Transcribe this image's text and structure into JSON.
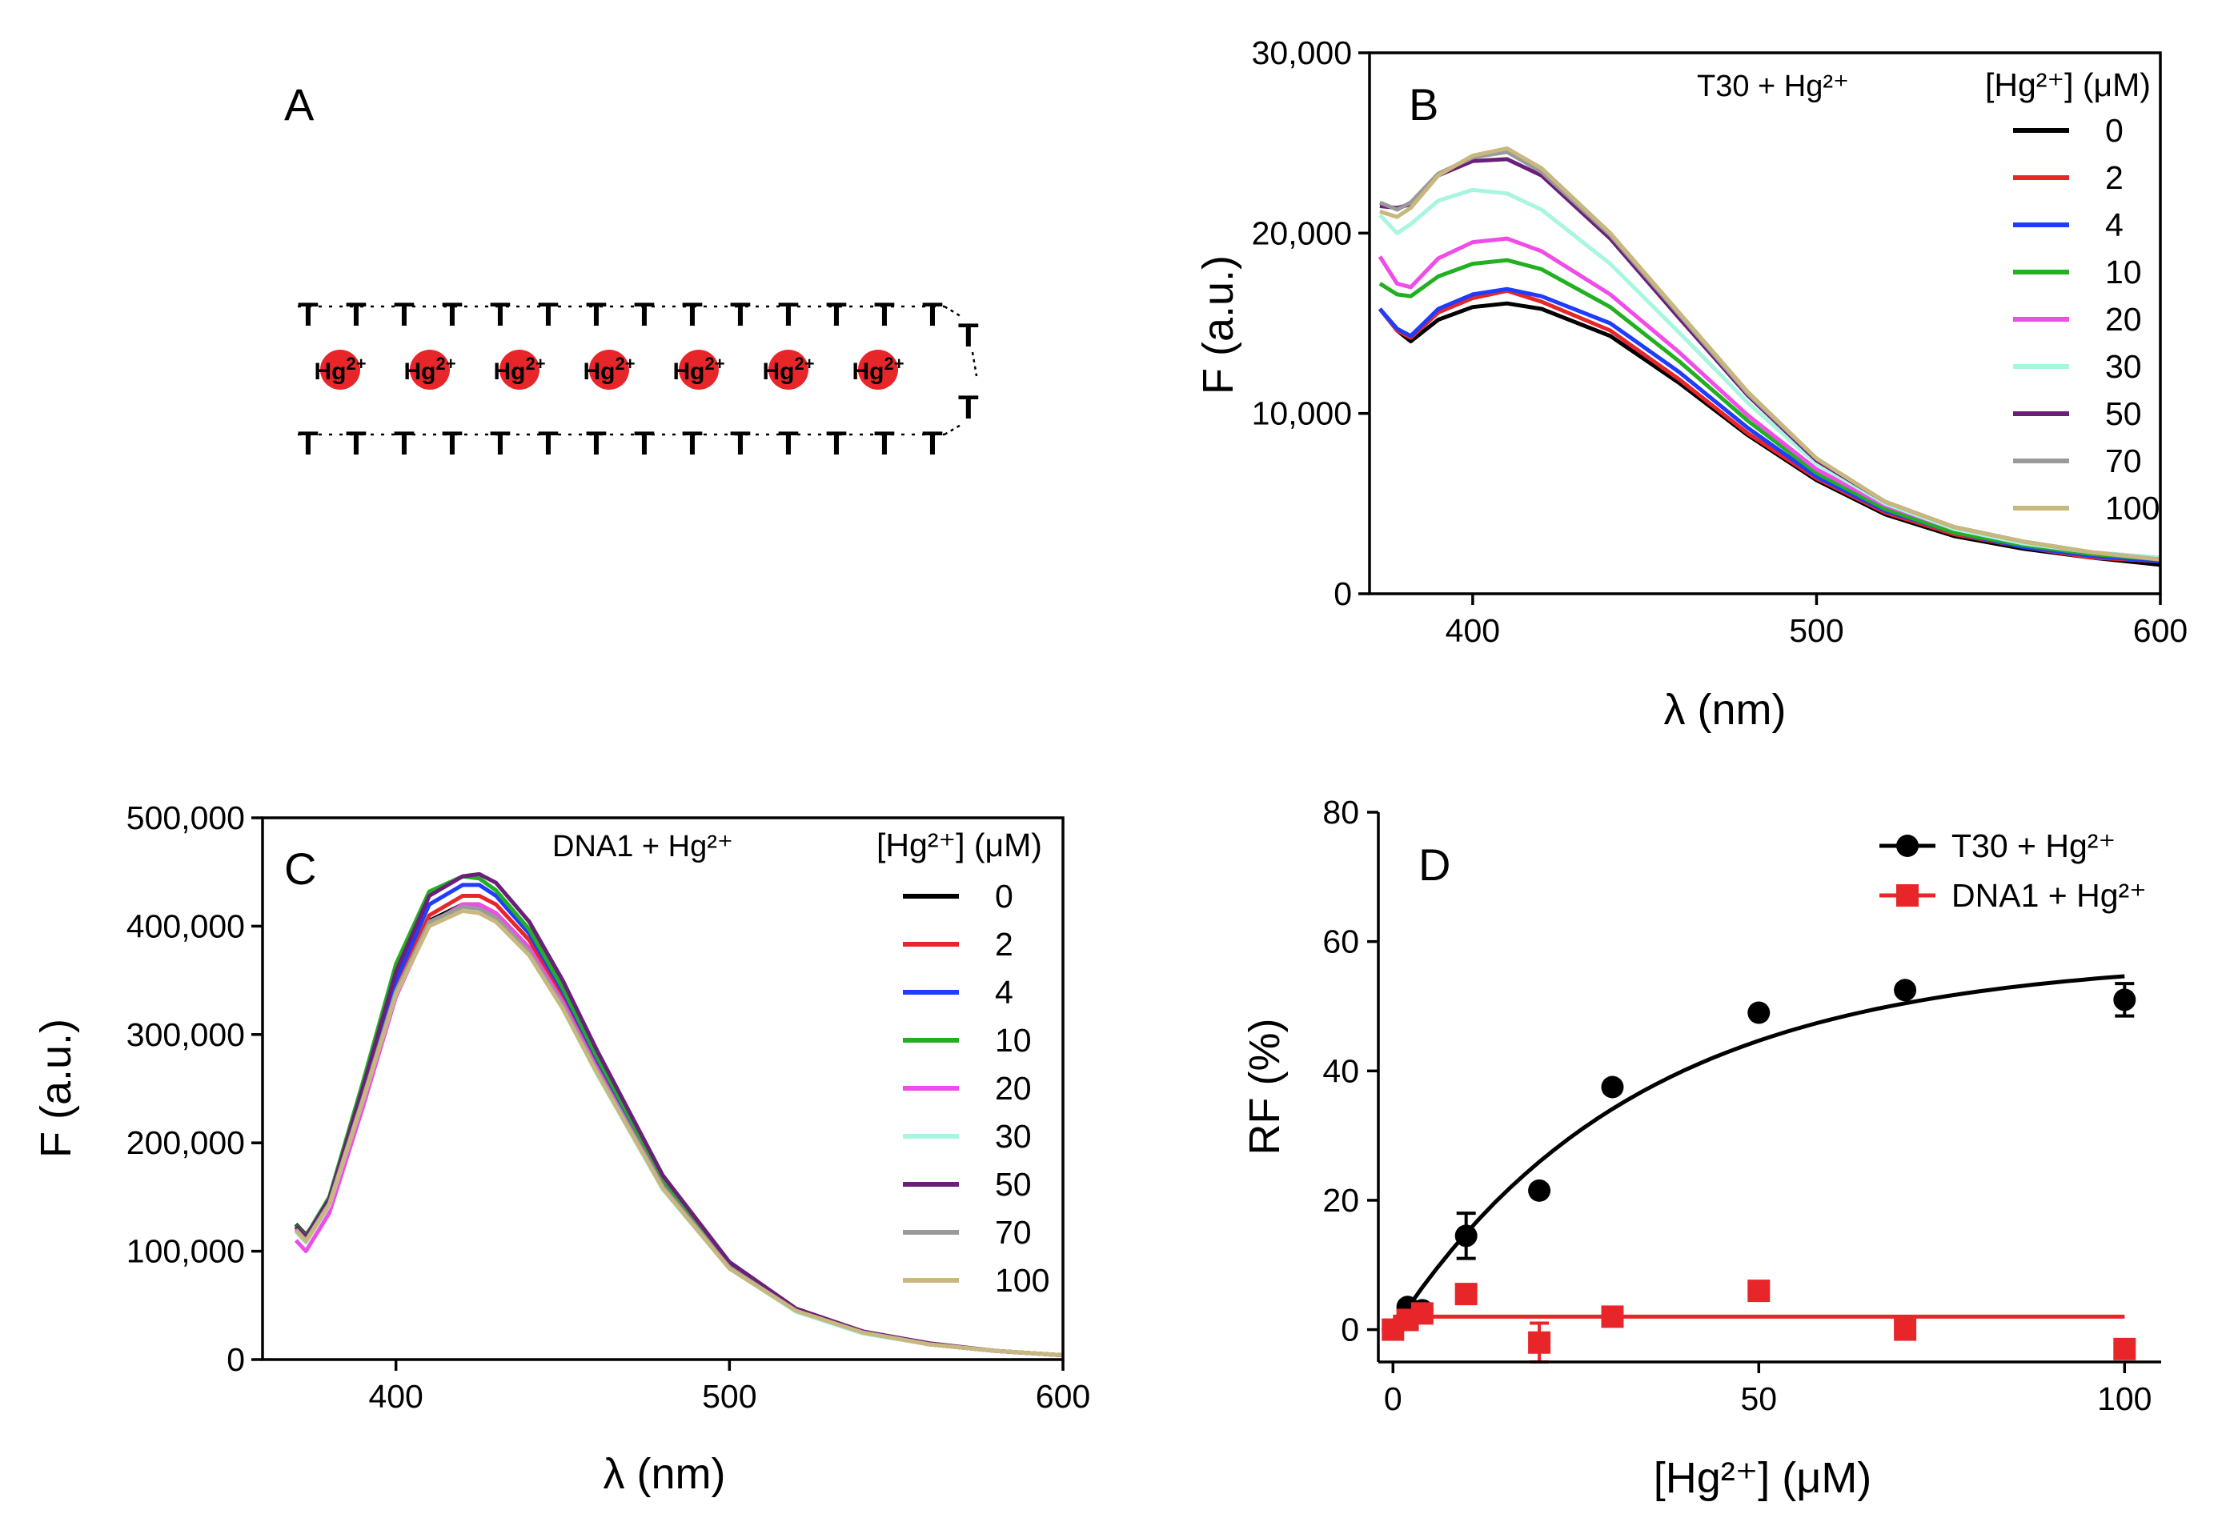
{
  "panel_a": {
    "label": "A",
    "top_strand": [
      "T",
      "T",
      "T",
      "T",
      "T",
      "T",
      "T",
      "T",
      "T",
      "T",
      "T",
      "T",
      "T",
      "T"
    ],
    "bottom_strand": [
      "T",
      "T",
      "T",
      "T",
      "T",
      "T",
      "T",
      "T",
      "T",
      "T",
      "T",
      "T",
      "T",
      "T"
    ],
    "loop": [
      "T",
      "T"
    ],
    "ions": [
      "Hg2+",
      "Hg2+",
      "Hg2+",
      "Hg2+",
      "Hg2+",
      "Hg2+",
      "Hg2+"
    ],
    "ion_color": "#e8262a"
  },
  "chart_data": [
    {
      "panel": "B",
      "type": "line",
      "annotation": "T30 + Hg²⁺",
      "xlabel": "λ (nm)",
      "ylabel": "F (a.u.)",
      "xlim": [
        370,
        600
      ],
      "ylim": [
        0,
        30000
      ],
      "xticks": [
        400,
        500,
        600
      ],
      "yticks": [
        0,
        10000,
        20000,
        30000
      ],
      "ytick_labels": [
        "0",
        "10,000",
        "20,000",
        "30,000"
      ],
      "legend_title": "[Hg²⁺] (μM)",
      "series": [
        {
          "name": "0",
          "color": "#000000",
          "x": [
            373,
            378,
            382,
            390,
            400,
            410,
            420,
            440,
            460,
            480,
            500,
            520,
            540,
            560,
            580,
            600
          ],
          "y": [
            15800,
            14600,
            14000,
            15200,
            15900,
            16100,
            15800,
            14300,
            11700,
            8800,
            6300,
            4400,
            3200,
            2500,
            2000,
            1600
          ]
        },
        {
          "name": "2",
          "color": "#e8262a",
          "x": [
            373,
            378,
            382,
            390,
            400,
            410,
            420,
            440,
            460,
            480,
            500,
            520,
            540,
            560,
            580,
            600
          ],
          "y": [
            15800,
            14600,
            14200,
            15600,
            16400,
            16800,
            16200,
            14600,
            11900,
            8900,
            6400,
            4500,
            3300,
            2600,
            2000,
            1800
          ]
        },
        {
          "name": "4",
          "color": "#1f3dff",
          "x": [
            373,
            378,
            382,
            390,
            400,
            410,
            420,
            440,
            460,
            480,
            500,
            520,
            540,
            560,
            580,
            600
          ],
          "y": [
            15800,
            14700,
            14300,
            15800,
            16600,
            16900,
            16500,
            15000,
            12300,
            9200,
            6500,
            4600,
            3400,
            2600,
            2100,
            1800
          ]
        },
        {
          "name": "10",
          "color": "#22b022",
          "x": [
            373,
            378,
            382,
            390,
            400,
            410,
            420,
            440,
            460,
            480,
            500,
            520,
            540,
            560,
            580,
            600
          ],
          "y": [
            17200,
            16600,
            16500,
            17600,
            18300,
            18500,
            18000,
            15900,
            12900,
            9600,
            6700,
            4700,
            3400,
            2700,
            2200,
            1900
          ]
        },
        {
          "name": "20",
          "color": "#f04ce8",
          "x": [
            373,
            378,
            382,
            390,
            400,
            410,
            420,
            440,
            460,
            480,
            500,
            520,
            540,
            560,
            580,
            600
          ],
          "y": [
            18700,
            17200,
            17000,
            18600,
            19500,
            19700,
            19000,
            16600,
            13400,
            9900,
            6900,
            4900,
            3600,
            2800,
            2300,
            2000
          ]
        },
        {
          "name": "30",
          "color": "#a8f5e0",
          "x": [
            373,
            378,
            382,
            390,
            400,
            410,
            420,
            440,
            460,
            480,
            500,
            520,
            540,
            560,
            580,
            600
          ],
          "y": [
            21000,
            20000,
            20500,
            21800,
            22400,
            22200,
            21300,
            18300,
            14500,
            10600,
            7200,
            5000,
            3600,
            2800,
            2300,
            2000
          ]
        },
        {
          "name": "50",
          "color": "#6a1f7a",
          "x": [
            373,
            378,
            382,
            390,
            400,
            410,
            420,
            440,
            460,
            480,
            500,
            520,
            540,
            560,
            580,
            600
          ],
          "y": [
            21500,
            21400,
            21600,
            23200,
            24000,
            24100,
            23200,
            19700,
            15300,
            11000,
            7400,
            5100,
            3700,
            2900,
            2300,
            1900
          ]
        },
        {
          "name": "70",
          "color": "#9a9a9a",
          "x": [
            373,
            378,
            382,
            390,
            400,
            410,
            420,
            440,
            460,
            480,
            500,
            520,
            540,
            560,
            580,
            600
          ],
          "y": [
            21700,
            21300,
            21700,
            23300,
            24200,
            24500,
            23400,
            19900,
            15500,
            11100,
            7500,
            5100,
            3700,
            2900,
            2300,
            1900
          ]
        },
        {
          "name": "100",
          "color": "#c8b77e",
          "x": [
            373,
            378,
            382,
            390,
            400,
            410,
            420,
            440,
            460,
            480,
            500,
            520,
            540,
            560,
            580,
            600
          ],
          "y": [
            21200,
            20900,
            21400,
            23200,
            24300,
            24700,
            23600,
            20000,
            15600,
            11200,
            7500,
            5100,
            3700,
            2900,
            2300,
            1900
          ]
        }
      ]
    },
    {
      "panel": "C",
      "type": "line",
      "annotation": "DNA1 + Hg²⁺",
      "xlabel": "λ (nm)",
      "ylabel": "F (a.u.)",
      "xlim": [
        360,
        600
      ],
      "ylim": [
        0,
        500000
      ],
      "xticks": [
        400,
        500,
        600
      ],
      "yticks": [
        0,
        100000,
        200000,
        300000,
        400000,
        500000
      ],
      "ytick_labels": [
        "0",
        "100,000",
        "200,000",
        "300,000",
        "400,000",
        "500,000"
      ],
      "legend_title": "[Hg²⁺] (μM)",
      "series": [
        {
          "name": "0",
          "color": "#000000",
          "x": [
            370,
            373,
            380,
            390,
            400,
            410,
            420,
            425,
            430,
            440,
            450,
            460,
            480,
            500,
            520,
            540,
            560,
            580,
            600
          ],
          "y": [
            125000,
            115000,
            145000,
            240000,
            340000,
            405000,
            420000,
            420000,
            412000,
            380000,
            330000,
            270000,
            160000,
            85000,
            45000,
            25000,
            14000,
            8000,
            4000
          ]
        },
        {
          "name": "2",
          "color": "#e8262a",
          "x": [
            370,
            373,
            380,
            390,
            400,
            410,
            420,
            425,
            430,
            440,
            450,
            460,
            480,
            500,
            520,
            540,
            560,
            580,
            600
          ],
          "y": [
            122000,
            112000,
            145000,
            242000,
            345000,
            410000,
            428000,
            428000,
            420000,
            387000,
            336000,
            275000,
            163000,
            87000,
            46000,
            25000,
            14000,
            8000,
            4000
          ]
        },
        {
          "name": "4",
          "color": "#1f3dff",
          "x": [
            370,
            373,
            380,
            390,
            400,
            410,
            420,
            425,
            430,
            440,
            450,
            460,
            480,
            500,
            520,
            540,
            560,
            580,
            600
          ],
          "y": [
            120000,
            110000,
            146000,
            245000,
            350000,
            420000,
            438000,
            438000,
            428000,
            393000,
            340000,
            279000,
            165000,
            88000,
            46000,
            25000,
            14000,
            8000,
            4000
          ]
        },
        {
          "name": "10",
          "color": "#22b022",
          "x": [
            370,
            373,
            380,
            390,
            400,
            410,
            420,
            425,
            430,
            440,
            450,
            460,
            480,
            500,
            520,
            540,
            560,
            580,
            600
          ],
          "y": [
            124000,
            114000,
            150000,
            255000,
            365000,
            432000,
            446000,
            444000,
            433000,
            397000,
            343000,
            281000,
            166000,
            88000,
            46000,
            25000,
            14000,
            8000,
            4000
          ]
        },
        {
          "name": "20",
          "color": "#f04ce8",
          "x": [
            370,
            373,
            380,
            390,
            400,
            410,
            420,
            425,
            430,
            440,
            450,
            460,
            480,
            500,
            520,
            540,
            560,
            580,
            600
          ],
          "y": [
            110000,
            100000,
            135000,
            232000,
            335000,
            402000,
            420000,
            420000,
            412000,
            380000,
            330000,
            270000,
            160000,
            85000,
            45000,
            25000,
            14000,
            8000,
            4000
          ]
        },
        {
          "name": "30",
          "color": "#a8f5e0",
          "x": [
            370,
            373,
            380,
            390,
            400,
            410,
            420,
            425,
            430,
            440,
            450,
            460,
            480,
            500,
            520,
            540,
            560,
            580,
            600
          ],
          "y": [
            118000,
            108000,
            142000,
            238000,
            338000,
            402000,
            415000,
            412000,
            404000,
            373000,
            324000,
            265000,
            157000,
            84000,
            44000,
            24000,
            14000,
            8000,
            4000
          ]
        },
        {
          "name": "50",
          "color": "#6a1f7a",
          "x": [
            370,
            373,
            380,
            390,
            400,
            410,
            420,
            425,
            430,
            440,
            450,
            460,
            480,
            500,
            520,
            540,
            560,
            580,
            600
          ],
          "y": [
            123000,
            113000,
            148000,
            250000,
            358000,
            428000,
            446000,
            448000,
            440000,
            404000,
            350000,
            287000,
            170000,
            90000,
            47000,
            26000,
            15000,
            8000,
            4000
          ]
        },
        {
          "name": "70",
          "color": "#9a9a9a",
          "x": [
            370,
            373,
            380,
            390,
            400,
            410,
            420,
            425,
            430,
            440,
            450,
            460,
            480,
            500,
            520,
            540,
            560,
            580,
            600
          ],
          "y": [
            120000,
            110000,
            144000,
            240000,
            340000,
            404000,
            418000,
            416000,
            408000,
            376000,
            327000,
            268000,
            159000,
            85000,
            45000,
            25000,
            14000,
            8000,
            4000
          ]
        },
        {
          "name": "100",
          "color": "#c8b77e",
          "x": [
            370,
            373,
            380,
            390,
            400,
            410,
            420,
            425,
            430,
            440,
            450,
            460,
            480,
            500,
            520,
            540,
            560,
            580,
            600
          ],
          "y": [
            119000,
            109000,
            143000,
            238000,
            337000,
            400000,
            414000,
            412000,
            404000,
            373000,
            324000,
            266000,
            158000,
            84000,
            45000,
            25000,
            14000,
            8000,
            4000
          ]
        }
      ]
    },
    {
      "panel": "D",
      "type": "scatter",
      "xlabel": "[Hg²⁺] (μM)",
      "ylabel": "RF (%)",
      "xlim": [
        -2,
        105
      ],
      "ylim": [
        -5,
        80
      ],
      "xticks": [
        0,
        50,
        100
      ],
      "yticks": [
        0,
        20,
        40,
        60,
        80
      ],
      "series": [
        {
          "name": "T30 + Hg²⁺",
          "color": "#000000",
          "marker": "circle",
          "x": [
            0,
            2,
            4,
            10,
            20,
            30,
            50,
            70,
            100
          ],
          "y": [
            0,
            3.5,
            3,
            14.5,
            21.5,
            37.5,
            49,
            52.5,
            51
          ],
          "err": [
            0,
            0.5,
            0.5,
            3.5,
            0.5,
            0.5,
            0.5,
            0.5,
            2.5
          ],
          "fit": {
            "model": "one-phase association",
            "Ymax": 57.5,
            "k": 0.03
          }
        },
        {
          "name": "DNA1 + Hg²⁺",
          "color": "#e8262a",
          "marker": "square",
          "x": [
            0,
            2,
            4,
            10,
            20,
            30,
            50,
            70,
            100
          ],
          "y": [
            0,
            1.5,
            2.5,
            5.5,
            -2,
            2,
            6,
            0,
            -3
          ],
          "err": [
            0,
            0,
            0,
            0,
            3,
            0,
            0,
            0,
            0
          ],
          "fit": {
            "model": "constant",
            "value": 2
          }
        }
      ]
    }
  ]
}
